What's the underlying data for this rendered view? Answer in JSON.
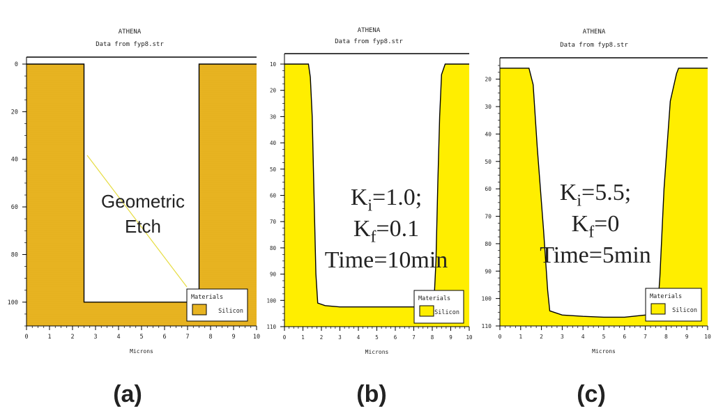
{
  "colors": {
    "silicon_a": "#E8B422",
    "silicon_bc": "#FFEE00",
    "outline": "#000000",
    "annotation_line": "#E6DC40"
  },
  "chart_data": [
    {
      "type": "area",
      "panel_label": "(a)",
      "title": "ATHENA",
      "subtitle": "Data from fyp8.str",
      "xlabel": "Microns",
      "ylabel": "",
      "xlim": [
        0,
        10
      ],
      "ylim": [
        110,
        0
      ],
      "y_inverted": true,
      "xticks": [
        0,
        1,
        2,
        3,
        4,
        5,
        6,
        7,
        8,
        9,
        10
      ],
      "yticks": [
        0,
        20,
        40,
        60,
        80,
        100
      ],
      "grid": false,
      "legend": {
        "title": "Materials",
        "entries": [
          "Silicon"
        ],
        "placement": "bottom-right"
      },
      "annotation": "Geometric\nEtch",
      "series": [
        {
          "name": "Silicon",
          "surface_x": [
            0,
            2.5,
            2.5,
            7.5,
            7.5,
            10
          ],
          "surface_y": [
            0,
            0,
            100,
            100,
            0,
            0
          ]
        }
      ]
    },
    {
      "type": "area",
      "panel_label": "(b)",
      "title": "ATHENA",
      "subtitle": "Data from fyp8.str",
      "xlabel": "Microns",
      "ylabel": "",
      "xlim": [
        0,
        10
      ],
      "ylim": [
        110,
        10
      ],
      "y_inverted": true,
      "xticks": [
        0,
        1,
        2,
        3,
        4,
        5,
        6,
        7,
        8,
        9,
        10
      ],
      "yticks": [
        10,
        20,
        30,
        40,
        50,
        60,
        70,
        80,
        90,
        100,
        110
      ],
      "grid": false,
      "legend": {
        "title": "Materials",
        "entries": [
          "Silicon"
        ],
        "placement": "bottom-right"
      },
      "annotation": "K_i =1.0;\nK_f =0.1\nTime=10min",
      "series": [
        {
          "name": "Silicon",
          "surface_x": [
            0,
            1.3,
            1.4,
            1.5,
            1.6,
            1.7,
            1.8,
            2.2,
            3,
            5,
            7,
            7.7,
            8.1,
            8.2,
            8.3,
            8.4,
            8.5,
            8.7,
            10
          ],
          "surface_y": [
            10,
            10,
            15,
            30,
            60,
            90,
            101,
            102,
            102.5,
            102.5,
            102.5,
            102.2,
            100,
            85,
            55,
            30,
            14,
            10,
            10
          ]
        }
      ]
    },
    {
      "type": "area",
      "panel_label": "(c)",
      "title": "ATHENA",
      "subtitle": "Data from fyp8.str",
      "xlabel": "Microns",
      "ylabel": "",
      "xlim": [
        0,
        10
      ],
      "ylim": [
        110,
        15
      ],
      "y_inverted": true,
      "xticks": [
        0,
        1,
        2,
        3,
        4,
        5,
        6,
        7,
        8,
        9,
        10
      ],
      "yticks": [
        20,
        30,
        40,
        50,
        60,
        70,
        80,
        90,
        100,
        110
      ],
      "grid": false,
      "legend": {
        "title": "Materials",
        "entries": [
          "Silicon"
        ],
        "placement": "bottom-right"
      },
      "annotation": "K_i =5.5;\nK_f =0\nTime=5min",
      "series": [
        {
          "name": "Silicon",
          "surface_x": [
            0,
            1.4,
            1.6,
            1.8,
            2.1,
            2.3,
            2.4,
            3,
            4,
            5,
            6,
            7,
            7.6,
            7.7,
            7.9,
            8.2,
            8.5,
            8.6,
            10
          ],
          "surface_y": [
            16,
            16,
            22,
            45,
            75,
            97,
            104.5,
            106,
            106.5,
            106.8,
            106.8,
            106,
            103,
            92,
            60,
            28,
            18,
            16,
            16
          ]
        }
      ]
    }
  ]
}
